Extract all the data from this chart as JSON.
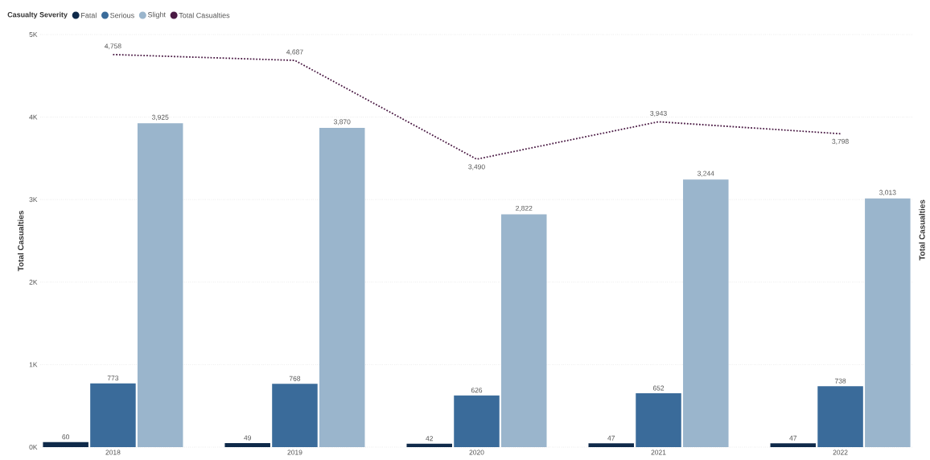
{
  "chart_data": {
    "type": "bar",
    "legend_title": "Casualty Severity",
    "ylabel": "Total Casualties",
    "y2label": "Total Casualties",
    "categories": [
      "2018",
      "2019",
      "2020",
      "2021",
      "2022"
    ],
    "series": [
      {
        "name": "Fatal",
        "color": "#0f2a4a",
        "values": [
          60,
          49,
          42,
          47,
          47
        ],
        "value_labels": [
          "60",
          "49",
          "42",
          "47",
          "47"
        ]
      },
      {
        "name": "Serious",
        "color": "#3a6b9a",
        "values": [
          773,
          768,
          626,
          652,
          738
        ],
        "value_labels": [
          "773",
          "768",
          "626",
          "652",
          "738"
        ]
      },
      {
        "name": "Slight",
        "color": "#9ab5cc",
        "values": [
          3925,
          3870,
          2822,
          3244,
          3013
        ],
        "value_labels": [
          "3,925",
          "3,870",
          "2,822",
          "3,244",
          "3,013"
        ]
      },
      {
        "name": "Total Casualties",
        "type": "line",
        "line_style": "dotted",
        "color": "#4a1a44",
        "values": [
          4758,
          4687,
          3490,
          3943,
          3798
        ],
        "value_labels": [
          "4,758",
          "4,687",
          "3,490",
          "3,943",
          "3,798"
        ]
      }
    ],
    "ylim": [
      0,
      5000
    ],
    "yticks": [
      {
        "value": 0,
        "label": "0K"
      },
      {
        "value": 1000,
        "label": "1K"
      },
      {
        "value": 2000,
        "label": "2K"
      },
      {
        "value": 3000,
        "label": "3K"
      },
      {
        "value": 4000,
        "label": "4K"
      },
      {
        "value": 5000,
        "label": "5K"
      }
    ],
    "grid": "y",
    "legend": "top left"
  }
}
